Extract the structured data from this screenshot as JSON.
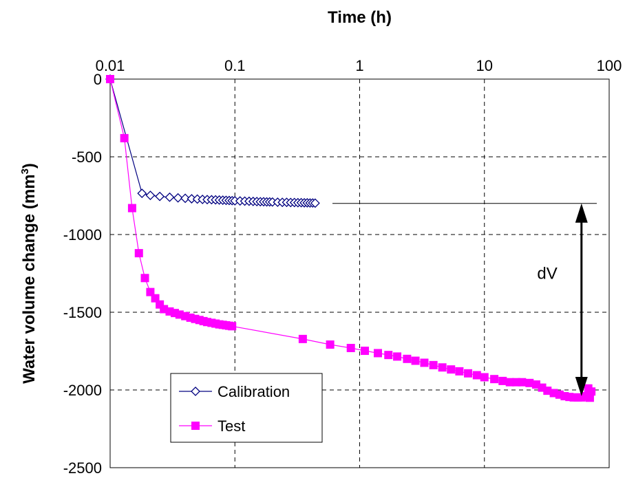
{
  "chart_data": {
    "type": "scatter",
    "title": "",
    "xlabel": "Time (h)",
    "ylabel_main": "Water volume change (mm",
    "ylabel_sup": "3",
    "ylabel_close": ")",
    "x_scale": "log",
    "xlim": [
      0.01,
      100
    ],
    "ylim": [
      -2500,
      0
    ],
    "x_ticks": [
      0.01,
      0.1,
      1,
      10,
      100
    ],
    "x_tick_labels": [
      "0.01",
      "0.1",
      "1",
      "10",
      "100"
    ],
    "y_ticks": [
      0,
      -500,
      -1000,
      -1500,
      -2000,
      -2500
    ],
    "y_tick_labels": [
      "0",
      "-500",
      "-1000",
      "-1500",
      "-2000",
      "-2500"
    ],
    "x_axis_position": "top",
    "grid": "dashed",
    "legend_position": "bottom-left",
    "series": [
      {
        "name": "Calibration",
        "color": "#000080",
        "marker": "diamond-open",
        "x": [
          0.01,
          0.018,
          0.021,
          0.025,
          0.03,
          0.035,
          0.04,
          0.045,
          0.05,
          0.055,
          0.06,
          0.065,
          0.07,
          0.075,
          0.08,
          0.085,
          0.09,
          0.095,
          0.1,
          0.11,
          0.12,
          0.13,
          0.14,
          0.15,
          0.16,
          0.17,
          0.18,
          0.19,
          0.2,
          0.22,
          0.24,
          0.26,
          0.28,
          0.3,
          0.32,
          0.34,
          0.36,
          0.38,
          0.4,
          0.42,
          0.44
        ],
        "y": [
          0,
          -735,
          -748,
          -755,
          -760,
          -764,
          -767,
          -770,
          -772,
          -774,
          -775,
          -776,
          -777,
          -778,
          -779,
          -780,
          -781,
          -782,
          -783,
          -784,
          -785,
          -786,
          -787,
          -788,
          -789,
          -789,
          -790,
          -790,
          -791,
          -792,
          -793,
          -793,
          -794,
          -794,
          -795,
          -795,
          -796,
          -796,
          -797,
          -797,
          -798
        ]
      },
      {
        "name": "Test",
        "color": "#FF00FF",
        "marker": "square-filled",
        "x": [
          0.01,
          0.013,
          0.015,
          0.017,
          0.019,
          0.021,
          0.023,
          0.025,
          0.027,
          0.03,
          0.033,
          0.036,
          0.04,
          0.044,
          0.048,
          0.052,
          0.056,
          0.06,
          0.065,
          0.07,
          0.075,
          0.08,
          0.085,
          0.09,
          0.095,
          0.35,
          0.58,
          0.85,
          1.1,
          1.4,
          1.7,
          2.0,
          2.4,
          2.8,
          3.3,
          3.9,
          4.6,
          5.4,
          6.3,
          7.4,
          8.7,
          10,
          12,
          14,
          16,
          18,
          20,
          23,
          26,
          29,
          32,
          36,
          40,
          44,
          48,
          52,
          56,
          60,
          64,
          68,
          70,
          72
        ],
        "y": [
          0,
          -380,
          -830,
          -1120,
          -1280,
          -1370,
          -1410,
          -1450,
          -1480,
          -1495,
          -1505,
          -1515,
          -1525,
          -1535,
          -1543,
          -1550,
          -1557,
          -1563,
          -1568,
          -1573,
          -1578,
          -1581,
          -1584,
          -1587,
          -1590,
          -1672,
          -1708,
          -1730,
          -1748,
          -1763,
          -1775,
          -1785,
          -1800,
          -1812,
          -1825,
          -1840,
          -1855,
          -1868,
          -1880,
          -1893,
          -1905,
          -1918,
          -1930,
          -1942,
          -1950,
          -1950,
          -1950,
          -1955,
          -1965,
          -1985,
          -2005,
          -2020,
          -2030,
          -2040,
          -2045,
          -2048,
          -2048,
          -2048,
          -2040,
          -1990,
          -2050,
          -2010
        ]
      }
    ],
    "annotation": {
      "label": "dV",
      "y_top": -800,
      "y_bottom": -2040,
      "x": 60
    }
  }
}
